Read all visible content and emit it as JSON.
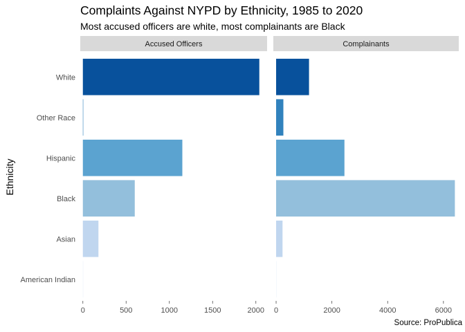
{
  "title": "Complaints Against NYPD by Ethnicity, 1985 to 2020",
  "subtitle": "Most accused officers are white, most complainants are Black",
  "caption": "Source: ProPublica",
  "chart_data": {
    "type": "bar",
    "orientation": "horizontal",
    "title": "Complaints Against NYPD by Ethnicity, 1985 to 2020",
    "subtitle": "Most accused officers are white, most complainants are Black",
    "ylabel": "Ethnicity",
    "xlabel": "",
    "categories": [
      "White",
      "Other Race",
      "Hispanic",
      "Black",
      "Asian",
      "American Indian"
    ],
    "colors": [
      "#08519c",
      "#3182bd",
      "#5ba3d0",
      "#93bfdc",
      "#c0d6ef",
      "#eef4fb"
    ],
    "facets": [
      {
        "name": "Accused Officers",
        "values": [
          2040,
          0,
          1150,
          600,
          180,
          5
        ],
        "xlim": [
          -30,
          2130
        ],
        "xticks": [
          0,
          500,
          1000,
          1500,
          2000
        ],
        "xtick_labels": [
          "0",
          "500",
          "1000",
          "1500",
          "2000"
        ]
      },
      {
        "name": "Complainants",
        "values": [
          1180,
          260,
          2450,
          6410,
          230,
          15
        ],
        "xlim": [
          -100,
          6550
        ],
        "xticks": [
          0,
          2000,
          4000,
          6000
        ],
        "xtick_labels": [
          "0",
          "2000",
          "4000",
          "6000"
        ]
      }
    ],
    "grid": false,
    "legend": "none"
  }
}
